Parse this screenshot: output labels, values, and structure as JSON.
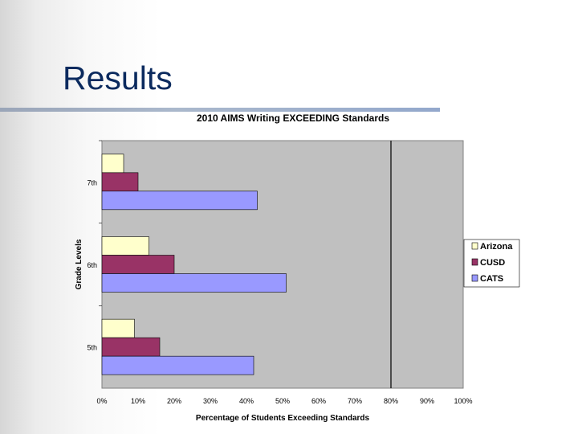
{
  "slide": {
    "title": "Results"
  },
  "chart_data": {
    "type": "bar",
    "orientation": "horizontal",
    "title": "2010 AIMS Writing EXCEEDING Standards",
    "xlabel": "Percentage of Students Exceeding Standards",
    "ylabel": "Grade Levels",
    "categories": [
      "5th",
      "6th",
      "7th"
    ],
    "series": [
      {
        "name": "Arizona",
        "color": "#ffffcc",
        "values": [
          9,
          13,
          6
        ]
      },
      {
        "name": "CUSD",
        "color": "#993366",
        "values": [
          16,
          20,
          10
        ]
      },
      {
        "name": "CATS",
        "color": "#9999ff",
        "values": [
          42,
          51,
          43
        ]
      }
    ],
    "xlim": [
      0,
      100
    ],
    "xticks": [
      "0%",
      "10%",
      "20%",
      "30%",
      "40%",
      "50%",
      "60%",
      "70%",
      "80%",
      "90%",
      "100%"
    ],
    "reference_line": 80,
    "grid": false,
    "plot_background": "#c0c0c0",
    "legend_position": "right"
  }
}
